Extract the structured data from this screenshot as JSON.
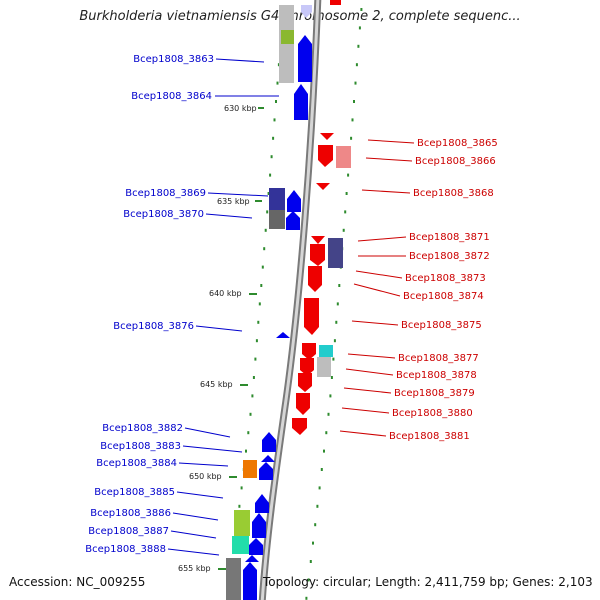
{
  "title": "Burkholderia vietnamiensis G4 chromosome 2, complete sequenc...",
  "footer": {
    "accession": "Accession: NC_009255",
    "topology": "Topology: circular; Length: 2,411,759 bp; Genes: 2,103"
  },
  "scale_labels": [
    "630 kbp",
    "635 kbp",
    "640 kbp",
    "645 kbp",
    "650 kbp",
    "655 kbp"
  ],
  "forward_labels": [
    "Bcep1808_3863",
    "Bcep1808_3864",
    "Bcep1808_3869",
    "Bcep1808_3870",
    "Bcep1808_3876",
    "Bcep1808_3882",
    "Bcep1808_3883",
    "Bcep1808_3884",
    "Bcep1808_3885",
    "Bcep1808_3886",
    "Bcep1808_3887",
    "Bcep1808_3888"
  ],
  "reverse_labels": [
    "Bcep1808_3865",
    "Bcep1808_3866",
    "Bcep1808_3868",
    "Bcep1808_3871",
    "Bcep1808_3872",
    "Bcep1808_3873",
    "Bcep1808_3874",
    "Bcep1808_3875",
    "Bcep1808_3877",
    "Bcep1808_3878",
    "Bcep1808_3879",
    "Bcep1808_3880",
    "Bcep1808_3881"
  ],
  "colors": {
    "forward_gene": "#0000ee",
    "reverse_gene": "#ee0000",
    "forward_label": "#0000cc",
    "reverse_label": "#cc0000",
    "backbone": "#9a9a9a",
    "tick": "#2e8b2e"
  }
}
